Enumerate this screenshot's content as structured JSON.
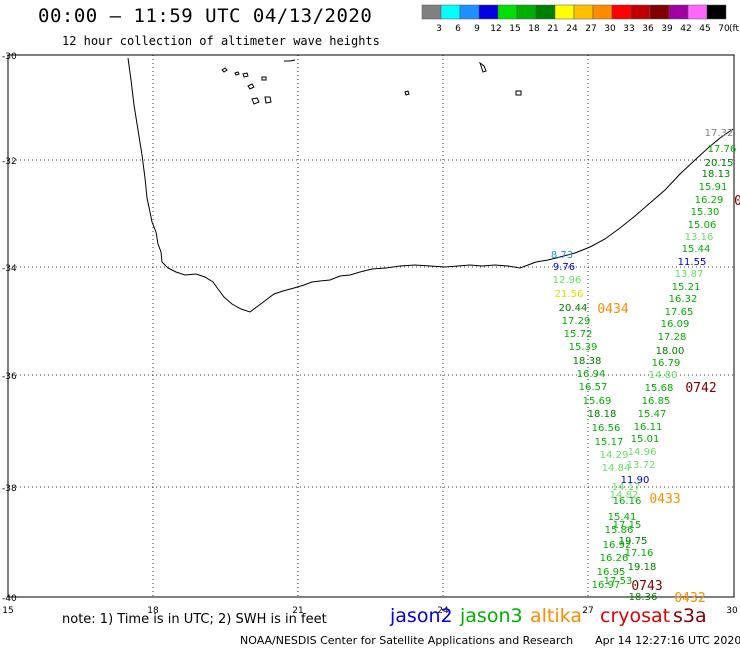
{
  "header": {
    "title": "00:00 – 11:59 UTC 04/13/2020",
    "subtitle": "12 hour collection of altimeter wave heights"
  },
  "colorbar": {
    "unit": "(ft)",
    "levels": [
      "3",
      "6",
      "9",
      "12",
      "15",
      "18",
      "21",
      "24",
      "27",
      "30",
      "33",
      "36",
      "39",
      "42",
      "45",
      "70"
    ],
    "colors": [
      "#808080",
      "#00ffff",
      "#1e90ff",
      "#0000e0",
      "#00e000",
      "#00b000",
      "#008000",
      "#ffff00",
      "#ffc000",
      "#ff8c00",
      "#ff0000",
      "#c00000",
      "#800000",
      "#a000a0",
      "#ff66ff",
      "#000000"
    ]
  },
  "axes": {
    "lat_labels": [
      "-30",
      "-32",
      "-34",
      "-36",
      "-38",
      "-40"
    ],
    "lon_labels": [
      "15",
      "18",
      "21",
      "24",
      "27",
      "30"
    ]
  },
  "wave_heights": [
    {
      "text": "17.32",
      "color": "#808080"
    },
    {
      "text": "17.76",
      "color": "#00b000"
    },
    {
      "text": "20.15",
      "color": "#008000"
    },
    {
      "text": "18.13",
      "color": "#008000"
    },
    {
      "text": "15.91",
      "color": "#00b000"
    },
    {
      "text": "16.29",
      "color": "#00b000"
    },
    {
      "text": "15.30",
      "color": "#00b000"
    },
    {
      "text": "15.06",
      "color": "#00b000"
    },
    {
      "text": "13.16",
      "color": "#66e066"
    },
    {
      "text": "15.44",
      "color": "#00b000"
    },
    {
      "text": "11.55",
      "color": "#0000e0"
    },
    {
      "text": "13.87",
      "color": "#66e066"
    },
    {
      "text": "15.21",
      "color": "#00b000"
    },
    {
      "text": "16.32",
      "color": "#00b000"
    },
    {
      "text": "17.65",
      "color": "#00b000"
    },
    {
      "text": "16.09",
      "color": "#00b000"
    },
    {
      "text": "17.28",
      "color": "#00b000"
    },
    {
      "text": "18.00",
      "color": "#008000"
    },
    {
      "text": "16.79",
      "color": "#00b000"
    },
    {
      "text": "14.80",
      "color": "#66e066"
    },
    {
      "text": "15.68",
      "color": "#00b000"
    },
    {
      "text": "16.85",
      "color": "#00b000"
    },
    {
      "text": "15.47",
      "color": "#00b000"
    },
    {
      "text": "16.11",
      "color": "#00b000"
    },
    {
      "text": "15.01",
      "color": "#00b000"
    },
    {
      "text": "14.96",
      "color": "#66e066"
    },
    {
      "text": "13.72",
      "color": "#66e066"
    },
    {
      "text": "8.73",
      "color": "#1e90ff"
    },
    {
      "text": "9.76",
      "color": "#0000e0"
    },
    {
      "text": "12.96",
      "color": "#66e066"
    },
    {
      "text": "21.56",
      "color": "#e0e000"
    },
    {
      "text": "20.44",
      "color": "#008000"
    },
    {
      "text": "17.29",
      "color": "#00b000"
    },
    {
      "text": "15.72",
      "color": "#00b000"
    },
    {
      "text": "15.39",
      "color": "#00b000"
    },
    {
      "text": "18.38",
      "color": "#008000"
    },
    {
      "text": "16.94",
      "color": "#00b000"
    },
    {
      "text": "16.57",
      "color": "#00b000"
    },
    {
      "text": "15.69",
      "color": "#00b000"
    },
    {
      "text": "18.18",
      "color": "#008000"
    },
    {
      "text": "16.56",
      "color": "#00b000"
    },
    {
      "text": "15.17",
      "color": "#00b000"
    },
    {
      "text": "14.29",
      "color": "#66e066"
    },
    {
      "text": "14.84",
      "color": "#66e066"
    },
    {
      "text": "11.90",
      "color": "#0000e0"
    },
    {
      "text": "14.17",
      "color": "#66e066"
    },
    {
      "text": "14.82",
      "color": "#66e066"
    },
    {
      "text": "16.16",
      "color": "#00b000"
    },
    {
      "text": "15.41",
      "color": "#00b000"
    },
    {
      "text": "17.15",
      "color": "#00b000"
    },
    {
      "text": "15.86",
      "color": "#00b000"
    },
    {
      "text": "19.75",
      "color": "#008000"
    },
    {
      "text": "16.92",
      "color": "#00b000"
    },
    {
      "text": "17.16",
      "color": "#00b000"
    },
    {
      "text": "16.26",
      "color": "#00b000"
    },
    {
      "text": "19.18",
      "color": "#008000"
    },
    {
      "text": "16.95",
      "color": "#00b000"
    },
    {
      "text": "17.53",
      "color": "#00b000"
    },
    {
      "text": "16.97",
      "color": "#00b000"
    },
    {
      "text": "18.36",
      "color": "#008000"
    }
  ],
  "pass_times": [
    {
      "text": "0434",
      "color": "#ff8c00"
    },
    {
      "text": "0742",
      "color": "#800000"
    },
    {
      "text": "0433",
      "color": "#ff8c00"
    },
    {
      "text": "0743",
      "color": "#800000"
    },
    {
      "text": "0432",
      "color": "#ff8c00"
    },
    {
      "text": "0",
      "color": "#800000"
    }
  ],
  "note": "note: 1) Time is in UTC; 2) SWH is in feet",
  "satellites": [
    {
      "name": "jason2",
      "color": "#0000e0"
    },
    {
      "name": "jason3",
      "color": "#00b000"
    },
    {
      "name": "altika",
      "color": "#ff8c00"
    },
    {
      "name": "cryosat",
      "color": "#e00000"
    },
    {
      "name": "s3a",
      "color": "#800000"
    }
  ],
  "footer": {
    "source": "NOAA/NESDIS Center for Satellite Applications and Research",
    "timestamp": "Apr 14 12:27:16 UTC 2020"
  }
}
